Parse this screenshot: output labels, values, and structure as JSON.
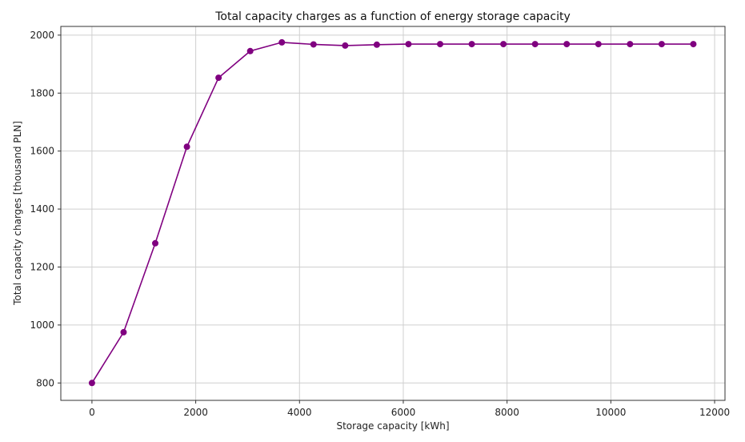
{
  "chart_data": {
    "type": "line",
    "title": "Total capacity charges as a function of energy storage capacity",
    "xlabel": "Storage capacity [kWh]",
    "ylabel": "Total capacity charges [thousand PLN]",
    "xlim": [
      -600,
      12200
    ],
    "ylim": [
      740,
      2030
    ],
    "xticks": [
      0,
      2000,
      4000,
      6000,
      8000,
      10000,
      12000
    ],
    "yticks": [
      800,
      1000,
      1200,
      1400,
      1600,
      1800,
      2000
    ],
    "grid": true,
    "series": [
      {
        "color": "#800080",
        "marker": "circle",
        "x": [
          0,
          610,
          1220,
          1830,
          2440,
          3050,
          3660,
          4270,
          4880,
          5490,
          6100,
          6710,
          7320,
          7930,
          8540,
          9150,
          9760,
          10370,
          10980,
          11590
        ],
        "y": [
          800,
          975,
          1282,
          1615,
          1853,
          1945,
          1975,
          1968,
          1964,
          1967,
          1969,
          1969,
          1969,
          1969,
          1969,
          1969,
          1969,
          1969,
          1969,
          1969
        ]
      }
    ]
  }
}
